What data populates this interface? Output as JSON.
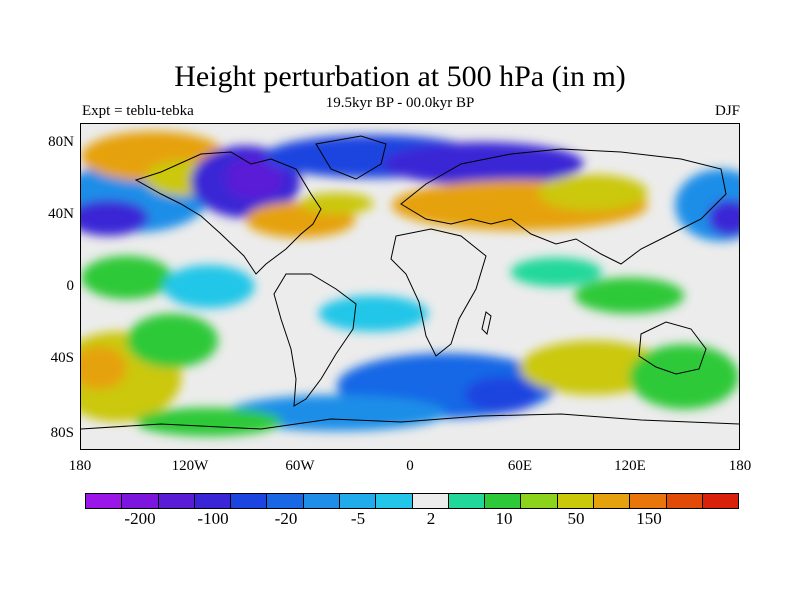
{
  "title": "Height perturbation at 500 hPa (in m)",
  "subtitle": "19.5kyr BP - 00.0kyr BP",
  "left_label": "Expt = teblu-tebka",
  "right_label": "DJF",
  "axes": {
    "y_ticks": [
      "80N",
      "40N",
      "0",
      "40S",
      "80S"
    ],
    "x_ticks": [
      "180",
      "120W",
      "60W",
      "0",
      "60E",
      "120E",
      "180"
    ]
  },
  "colorbar": {
    "colors": [
      "#9b16e8",
      "#7c16de",
      "#5a1cd6",
      "#3a26d6",
      "#1b44e0",
      "#1868e6",
      "#1f8ee8",
      "#20acea",
      "#21c6e8",
      "#ececec",
      "#21d89a",
      "#2ec938",
      "#8cd41c",
      "#cbc80c",
      "#e6a20c",
      "#e8760a",
      "#e24a08",
      "#d8200a"
    ],
    "tick_labels": [
      "-200",
      "-100",
      "-20",
      "-5",
      "2",
      "10",
      "50",
      "150"
    ]
  },
  "map": {
    "background_color": "#ececec",
    "blobs": [
      {
        "color": "#1f8ee8",
        "lon": -150,
        "lat": 50,
        "rx": 40,
        "ry": 20
      },
      {
        "color": "#3a26d6",
        "lon": -165,
        "lat": 38,
        "rx": 22,
        "ry": 10
      },
      {
        "color": "#e6a20c",
        "lon": -140,
        "lat": 72,
        "rx": 40,
        "ry": 14
      },
      {
        "color": "#cbc80c",
        "lon": -125,
        "lat": 60,
        "rx": 20,
        "ry": 10
      },
      {
        "color": "#3a26d6",
        "lon": -90,
        "lat": 58,
        "rx": 30,
        "ry": 20
      },
      {
        "color": "#5a1cd6",
        "lon": -85,
        "lat": 60,
        "rx": 16,
        "ry": 12
      },
      {
        "color": "#1b44e0",
        "lon": -20,
        "lat": 72,
        "rx": 60,
        "ry": 12
      },
      {
        "color": "#3a26d6",
        "lon": 40,
        "lat": 68,
        "rx": 55,
        "ry": 12
      },
      {
        "color": "#e6a20c",
        "lon": -60,
        "lat": 37,
        "rx": 30,
        "ry": 10
      },
      {
        "color": "#cbc80c",
        "lon": -40,
        "lat": 46,
        "rx": 20,
        "ry": 6
      },
      {
        "color": "#e6a20c",
        "lon": 60,
        "lat": 45,
        "rx": 70,
        "ry": 14
      },
      {
        "color": "#cbc80c",
        "lon": 100,
        "lat": 52,
        "rx": 30,
        "ry": 10
      },
      {
        "color": "#1f8ee8",
        "lon": 170,
        "lat": 45,
        "rx": 25,
        "ry": 20
      },
      {
        "color": "#3a26d6",
        "lon": 175,
        "lat": 38,
        "rx": 12,
        "ry": 10
      },
      {
        "color": "#2ec938",
        "lon": -155,
        "lat": 5,
        "rx": 25,
        "ry": 12
      },
      {
        "color": "#21c6e8",
        "lon": -110,
        "lat": 0,
        "rx": 25,
        "ry": 12
      },
      {
        "color": "#2ec938",
        "lon": 120,
        "lat": -5,
        "rx": 30,
        "ry": 10
      },
      {
        "color": "#21d89a",
        "lon": 80,
        "lat": 8,
        "rx": 25,
        "ry": 8
      },
      {
        "color": "#21c6e8",
        "lon": -20,
        "lat": -15,
        "rx": 30,
        "ry": 10
      },
      {
        "color": "#cbc80c",
        "lon": -160,
        "lat": -50,
        "rx": 35,
        "ry": 25
      },
      {
        "color": "#e6a20c",
        "lon": -170,
        "lat": -45,
        "rx": 15,
        "ry": 12
      },
      {
        "color": "#2ec938",
        "lon": -130,
        "lat": -30,
        "rx": 25,
        "ry": 15
      },
      {
        "color": "#1868e6",
        "lon": 20,
        "lat": -55,
        "rx": 60,
        "ry": 18
      },
      {
        "color": "#1b44e0",
        "lon": 50,
        "lat": -60,
        "rx": 20,
        "ry": 10
      },
      {
        "color": "#cbc80c",
        "lon": 100,
        "lat": -45,
        "rx": 40,
        "ry": 15
      },
      {
        "color": "#2ec938",
        "lon": 150,
        "lat": -50,
        "rx": 30,
        "ry": 18
      },
      {
        "color": "#1f8ee8",
        "lon": -40,
        "lat": -70,
        "rx": 60,
        "ry": 10
      },
      {
        "color": "#2ec938",
        "lon": -110,
        "lat": -75,
        "rx": 40,
        "ry": 8
      }
    ]
  }
}
